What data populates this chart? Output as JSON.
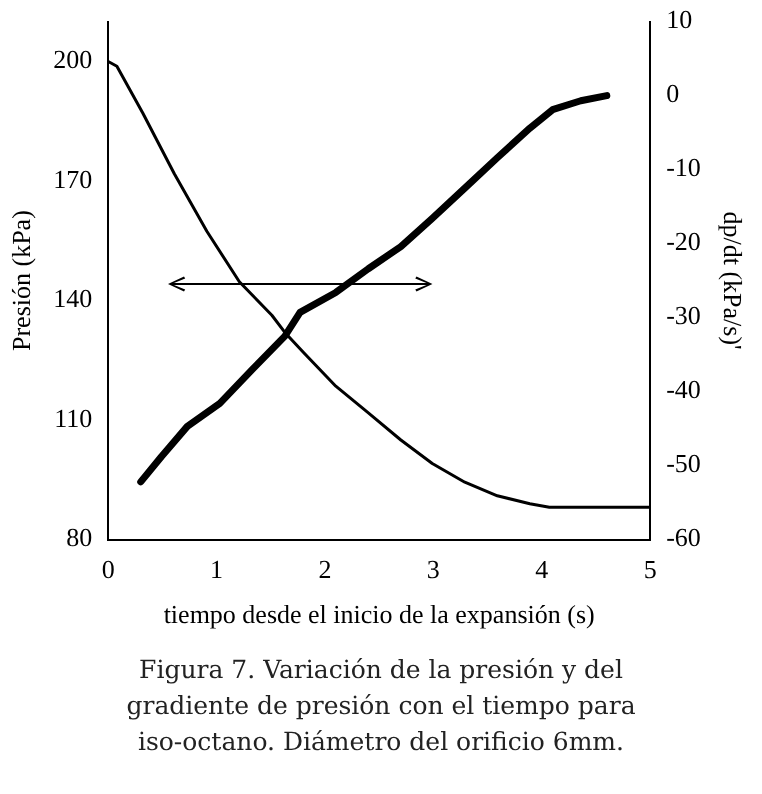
{
  "chart_data": {
    "type": "line",
    "xlabel": "tiempo desde el inicio de la expansión (s)",
    "ylabel": "Presión (kPa)",
    "y2label": "dp/dt (kPa/s)'",
    "xlim": [
      0,
      5
    ],
    "xticks": [
      0,
      1,
      2,
      3,
      4,
      5
    ],
    "ylim": [
      80,
      210
    ],
    "yticks": [
      80,
      110,
      140,
      170,
      200
    ],
    "y2lim": [
      -60,
      10
    ],
    "y2ticks": [
      -60,
      -50,
      -40,
      -30,
      -20,
      -10,
      0,
      10
    ],
    "grid": false,
    "legend": false,
    "marker": "none",
    "line_style": "solid",
    "series": [
      {
        "color": "#000000",
        "x": [
          0,
          0.08,
          0.32,
          0.61,
          0.91,
          1.21,
          1.51,
          1.63,
          1.8,
          2.1,
          2.4,
          2.7,
          2.99,
          3.29,
          3.59,
          3.89,
          4.07,
          5
        ],
        "values": [
          200,
          198.8,
          187,
          171.8,
          157.4,
          144.7,
          136.3,
          132,
          127,
          118.5,
          111.8,
          105,
          99.1,
          94.4,
          91,
          89,
          88.1,
          88.1
        ]
      },
      {
        "color": "#000000",
        "axis": "y2",
        "x": [
          0.3,
          0.49,
          0.73,
          1.03,
          1.33,
          1.63,
          1.77,
          2.1,
          2.4,
          2.7,
          2.99,
          3.29,
          3.59,
          3.89,
          4.1,
          4.36,
          4.6
        ],
        "values": [
          -52.2,
          -48.8,
          -44.7,
          -41.6,
          -37,
          -32.5,
          -29.3,
          -26.6,
          -23.4,
          -20.4,
          -16.6,
          -12.5,
          -8.4,
          -4.4,
          -1.9,
          -0.7,
          0
        ]
      }
    ],
    "annotations": [
      "Figura 7. Variación de la presión y del gradiente de presión con el tiempo para iso-octano. Diámetro del orificio 6mm."
    ]
  }
}
